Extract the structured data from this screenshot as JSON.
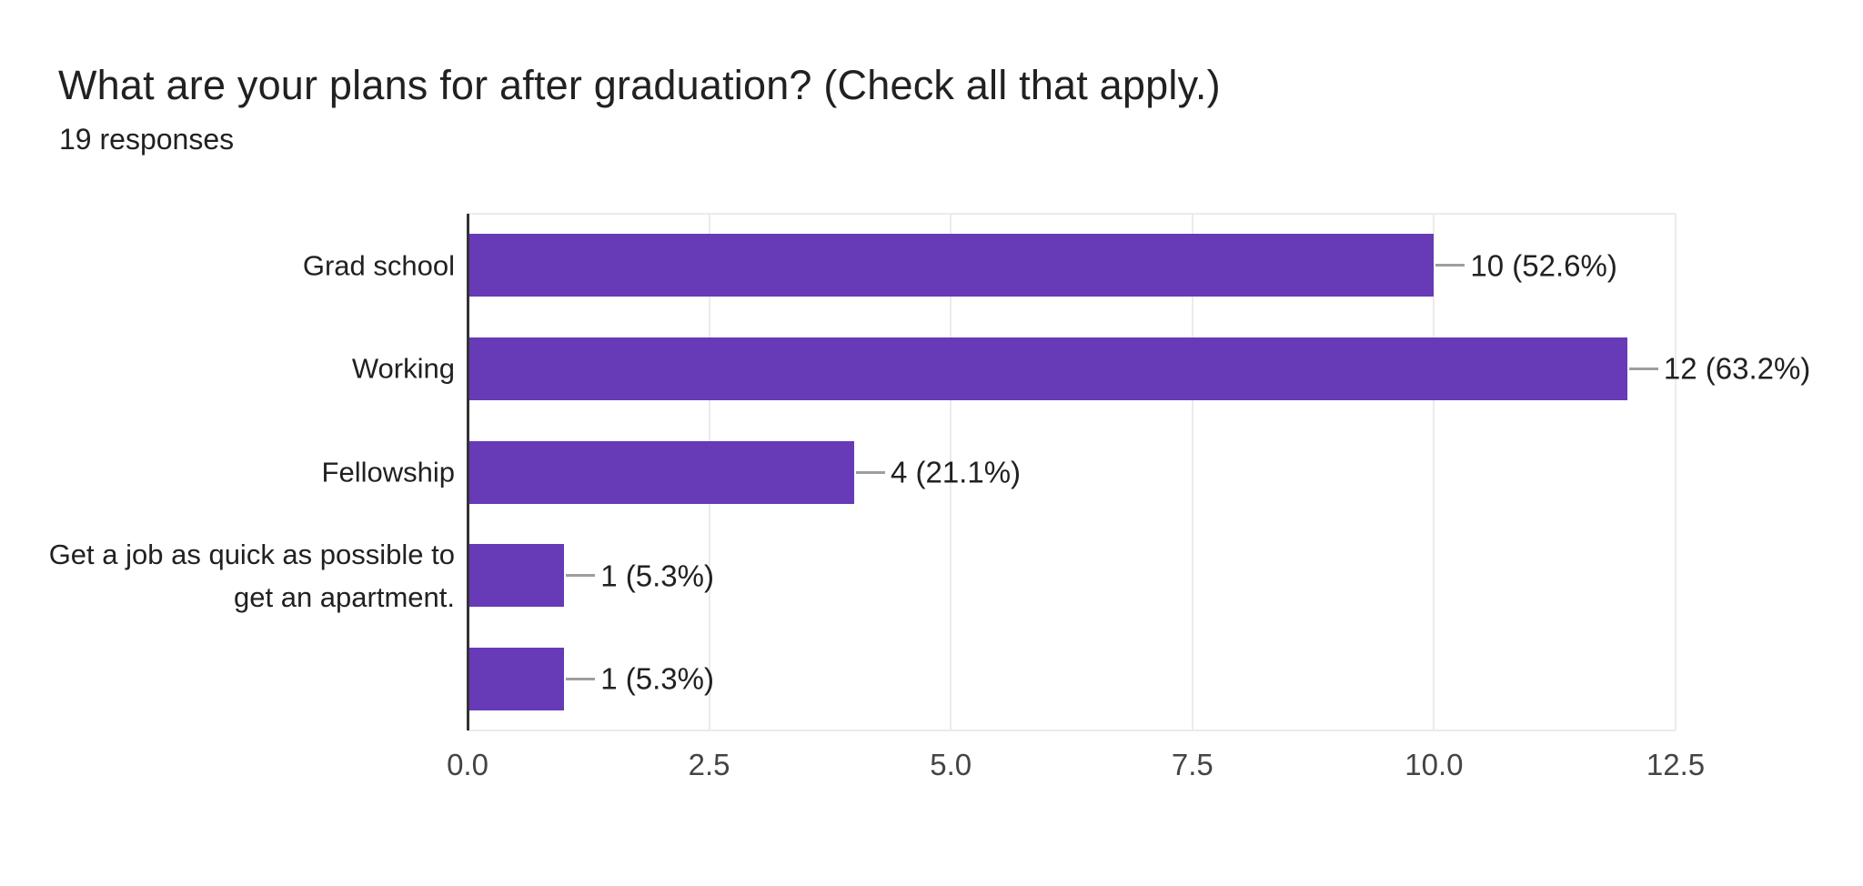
{
  "chart_data": {
    "type": "bar",
    "orientation": "horizontal",
    "title": "What are your plans for after graduation? (Check all that apply.)",
    "subtitle": "19 responses",
    "categories": [
      "Grad school",
      "Working",
      "Fellowship",
      "Get a job as quick as possible to get an apartment.",
      ""
    ],
    "values": [
      10,
      12,
      4,
      1,
      1
    ],
    "value_labels": [
      "10 (52.6%)",
      "12 (63.2%)",
      "4 (21.1%)",
      "1 (5.3%)",
      "1 (5.3%)"
    ],
    "x_ticks": [
      0,
      2.5,
      5,
      7.5,
      10,
      12.5
    ],
    "x_tick_labels": [
      "0.0",
      "2.5",
      "5.0",
      "7.5",
      "10.0",
      "12.5"
    ],
    "xlim": [
      0,
      12.5
    ],
    "grid": true,
    "legend": false,
    "colors": {
      "bar": "#673AB7",
      "axis": "#333333",
      "grid": "#ebebeb",
      "text": "#212121",
      "tick": "#444444",
      "connector": "#9e9e9e",
      "background": "#ffffff"
    }
  }
}
